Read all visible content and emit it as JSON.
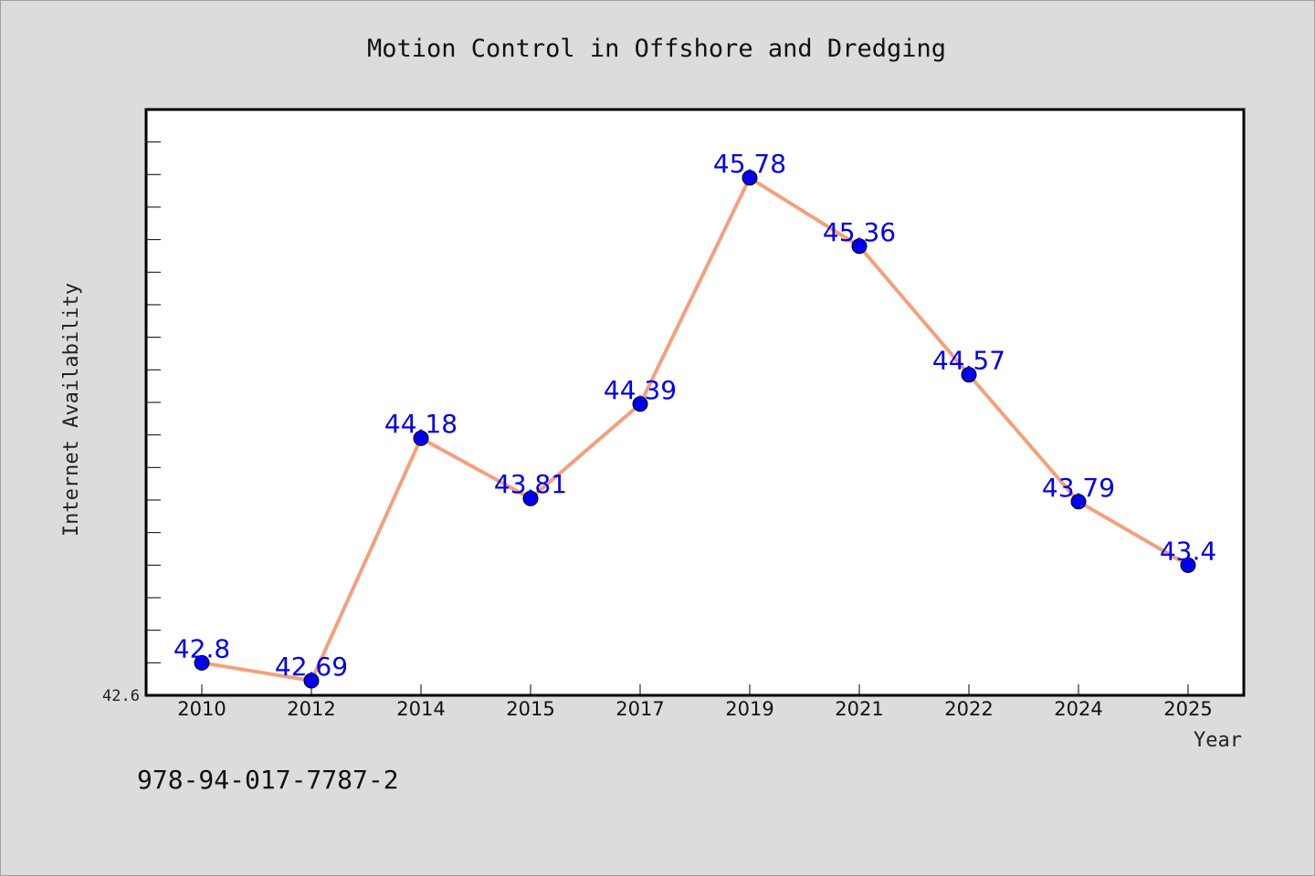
{
  "chart_data": {
    "type": "line",
    "title": "Motion Control in Offshore and Dredging",
    "xlabel": "Year",
    "ylabel": "Internet Availability",
    "categories": [
      "2010",
      "2012",
      "2014",
      "2015",
      "2017",
      "2019",
      "2021",
      "2022",
      "2024",
      "2025"
    ],
    "series": [
      {
        "values": [
          42.8,
          42.69,
          44.18,
          43.81,
          44.39,
          45.78,
          45.36,
          44.57,
          43.79,
          43.4
        ]
      }
    ],
    "data_labels": [
      "42.8",
      "42.69",
      "44.18",
      "43.81",
      "44.39",
      "45.78",
      "45.36",
      "44.57",
      "43.79",
      "43.4"
    ],
    "y_tick_label": "42.6",
    "ylim": [
      42.6,
      46.2
    ],
    "grid": false,
    "line_color": "#f4a07c",
    "marker_color": "#0000ee",
    "label_color": "#0000ee"
  },
  "footer": {
    "isbn": "978-94-017-7787-2"
  }
}
